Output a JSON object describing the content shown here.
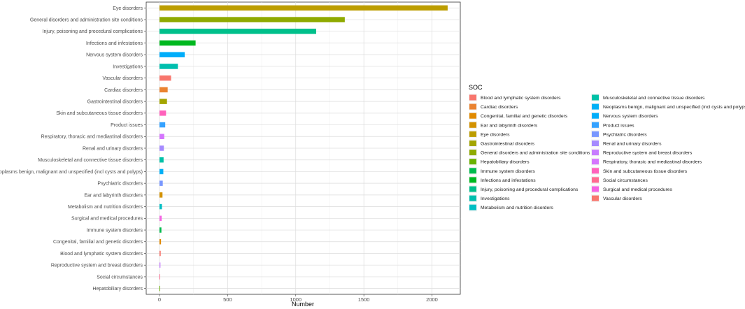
{
  "chart_data": {
    "type": "bar",
    "orientation": "horizontal",
    "xlabel": "Number",
    "ylabel": "",
    "xlim": [
      0,
      2200
    ],
    "xticks": [
      0,
      500,
      1000,
      1500,
      2000
    ],
    "grid": true,
    "legend_position": "right",
    "legend_title": "SOC",
    "categories": [
      "Eye disorders",
      "General disorders and administration site conditions",
      "Injury, poisoning and procedural complications",
      "Infections and infestations",
      "Nervous system disorders",
      "Investigations",
      "Vascular disorders",
      "Cardiac disorders",
      "Gastrointestinal disorders",
      "Skin and subcutaneous tissue disorders",
      "Product issues",
      "Respiratory, thoracic and mediastinal disorders",
      "Renal and urinary disorders",
      "Musculoskeletal and connective tissue disorders",
      "Neoplasms benign, malignant and unspecified (incl cysts and polyps)",
      "Psychiatric disorders",
      "Ear and labyrinth disorders",
      "Metabolism and nutrition disorders",
      "Surgical and medical procedures",
      "Immune system disorders",
      "Congenital, familial and genetic disorders",
      "Blood and lymphatic system disorders",
      "Reproductive system and breast disorders",
      "Social circumstances",
      "Hepatobiliary disorders"
    ],
    "values": [
      2115,
      1360,
      1150,
      265,
      185,
      135,
      85,
      60,
      55,
      48,
      42,
      35,
      32,
      30,
      28,
      24,
      22,
      18,
      16,
      14,
      11,
      9,
      7,
      5,
      3
    ],
    "colors": [
      "#BC9D00",
      "#8FAA00",
      "#00C08B",
      "#00B81F",
      "#00ADFA",
      "#00BFAE",
      "#F8766D",
      "#EA8331",
      "#A3A500",
      "#FF62BC",
      "#35A2FF",
      "#D575FE",
      "#A58AFF",
      "#00C1A7",
      "#00B0F6",
      "#7997FF",
      "#D39200",
      "#00BFC4",
      "#F564E3",
      "#00BB4E",
      "#E18A00",
      "#F8766D",
      "#C77CFF",
      "#FF6C91",
      "#6BB100"
    ],
    "legend_items": [
      {
        "label": "Blood and lymphatic system disorders",
        "color": "#F8766D"
      },
      {
        "label": "Cardiac disorders",
        "color": "#EA8331"
      },
      {
        "label": "Congenital, familial and genetic disorders",
        "color": "#E18A00"
      },
      {
        "label": "Ear and labyrinth disorders",
        "color": "#D39200"
      },
      {
        "label": "Eye disorders",
        "color": "#BC9D00"
      },
      {
        "label": "Gastrointestinal disorders",
        "color": "#A3A500"
      },
      {
        "label": "General disorders and administration site conditions",
        "color": "#8FAA00"
      },
      {
        "label": "Hepatobiliary disorders",
        "color": "#6BB100"
      },
      {
        "label": "Immune system disorders",
        "color": "#00BB4E"
      },
      {
        "label": "Infections and infestations",
        "color": "#00B81F"
      },
      {
        "label": "Injury, poisoning and procedural complications",
        "color": "#00C08B"
      },
      {
        "label": "Investigations",
        "color": "#00BFAE"
      },
      {
        "label": "Metabolism and nutrition disorders",
        "color": "#00BFC4"
      },
      {
        "label": "Musculoskeletal and connective tissue disorders",
        "color": "#00C1A7"
      },
      {
        "label": "Neoplasms benign, malignant and unspecified (incl cysts and polyps)",
        "color": "#00B0F6"
      },
      {
        "label": "Nervous system disorders",
        "color": "#00ADFA"
      },
      {
        "label": "Product issues",
        "color": "#35A2FF"
      },
      {
        "label": "Psychiatric disorders",
        "color": "#7997FF"
      },
      {
        "label": "Renal and urinary disorders",
        "color": "#A58AFF"
      },
      {
        "label": "Reproductive system and breast disorders",
        "color": "#C77CFF"
      },
      {
        "label": "Respiratory, thoracic and mediastinal disorders",
        "color": "#D575FE"
      },
      {
        "label": "Skin and subcutaneous tissue disorders",
        "color": "#FF62BC"
      },
      {
        "label": "Social circumstances",
        "color": "#FF6C91"
      },
      {
        "label": "Surgical and medical procedures",
        "color": "#F564E3"
      },
      {
        "label": "Vascular disorders",
        "color": "#F8766D"
      }
    ]
  }
}
